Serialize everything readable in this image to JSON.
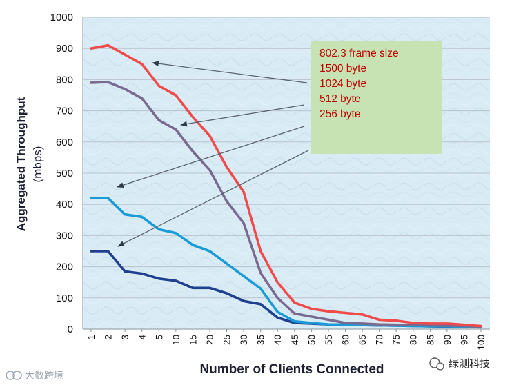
{
  "chart_data": {
    "type": "line",
    "title": "",
    "xlabel": "Number of Clients Connected",
    "ylabel": "Aggregated Throughput",
    "ylabel_unit": "(mbps)",
    "ylim": [
      0,
      1000
    ],
    "yticks": [
      0,
      100,
      200,
      300,
      400,
      500,
      600,
      700,
      800,
      900,
      1000
    ],
    "categories": [
      "1",
      "2",
      "3",
      "4",
      "5",
      "10",
      "15",
      "20",
      "25",
      "30",
      "35",
      "40",
      "45",
      "50",
      "55",
      "60",
      "65",
      "70",
      "75",
      "80",
      "85",
      "90",
      "95",
      "100"
    ],
    "legend_title": "802.3 frame size",
    "series": [
      {
        "name": "1500 byte",
        "color": "#f04a4a",
        "values": [
          900,
          910,
          880,
          850,
          780,
          750,
          680,
          620,
          520,
          440,
          250,
          150,
          85,
          65,
          57,
          52,
          47,
          30,
          27,
          20,
          18,
          18,
          14,
          10
        ]
      },
      {
        "name": "1024 byte",
        "color": "#7a6a8f",
        "values": [
          790,
          792,
          770,
          740,
          670,
          640,
          570,
          510,
          410,
          340,
          180,
          100,
          50,
          40,
          30,
          20,
          18,
          15,
          14,
          13,
          12,
          11,
          10,
          8
        ]
      },
      {
        "name": "512 byte",
        "color": "#1a9bd7",
        "values": [
          420,
          420,
          368,
          360,
          320,
          308,
          270,
          250,
          210,
          170,
          130,
          55,
          25,
          20,
          15,
          14,
          13,
          12,
          11,
          10,
          9,
          9,
          8,
          7
        ]
      },
      {
        "name": "256 byte",
        "color": "#1f3f8f",
        "values": [
          250,
          250,
          185,
          178,
          162,
          155,
          132,
          132,
          115,
          90,
          80,
          37,
          20,
          18,
          15,
          14,
          13,
          12,
          11,
          10,
          9,
          8,
          7,
          6
        ]
      }
    ]
  },
  "watermark_left": "大数跨境",
  "watermark_right": "绿测科技",
  "colors": {
    "plot_background": "#d9ecf5",
    "gridline": "#b9c2cc",
    "legend_background": "#c7e3b3",
    "legend_text": "#c00000",
    "arrow": "#5a6470"
  }
}
